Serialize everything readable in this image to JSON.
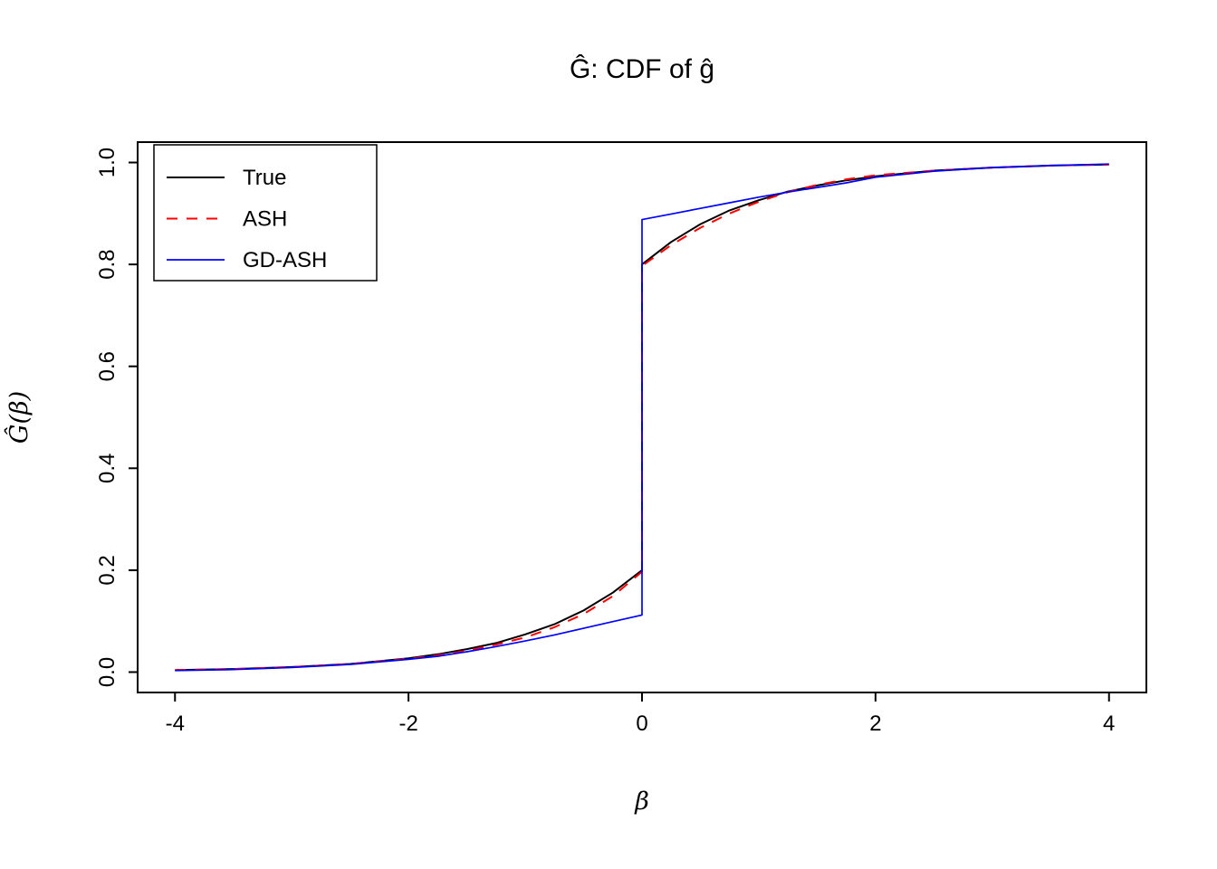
{
  "title": "Ĝ: CDF of ĝ",
  "chart_data": {
    "type": "line",
    "title": "Ĝ: CDF of ĝ",
    "xlabel": "β",
    "ylabel": "Ĝ(β)",
    "xlim": [
      -4,
      4
    ],
    "ylim": [
      0,
      1
    ],
    "x_ticks": [
      "-4",
      "-2",
      "0",
      "2",
      "4"
    ],
    "y_ticks": [
      "0.0",
      "0.2",
      "0.4",
      "0.6",
      "0.8",
      "1.0"
    ],
    "grid": false,
    "legend_position": "top-left",
    "series": [
      {
        "name": "True",
        "color": "#000000",
        "dash": "solid",
        "width": 2,
        "x": [
          -4,
          -3.5,
          -3,
          -2.5,
          -2,
          -1.75,
          -1.5,
          -1.25,
          -1,
          -0.75,
          -0.5,
          -0.25,
          0,
          0,
          0.25,
          0.5,
          0.75,
          1,
          1.25,
          1.5,
          1.75,
          2,
          2.5,
          3,
          3.5,
          4
        ],
        "y": [
          0.004,
          0.006,
          0.01,
          0.016,
          0.027,
          0.035,
          0.045,
          0.057,
          0.074,
          0.094,
          0.121,
          0.156,
          0.2,
          0.8,
          0.844,
          0.879,
          0.906,
          0.926,
          0.943,
          0.955,
          0.965,
          0.973,
          0.984,
          0.99,
          0.994,
          0.996
        ]
      },
      {
        "name": "ASH",
        "color": "#ff0000",
        "dash": "dashed",
        "width": 2,
        "x": [
          -4,
          -3.5,
          -3,
          -2.5,
          -2,
          -1.75,
          -1.5,
          -1.25,
          -1,
          -0.75,
          -0.5,
          -0.25,
          0,
          0,
          0.25,
          0.5,
          0.75,
          1,
          1.25,
          1.5,
          1.75,
          2,
          2.5,
          3,
          3.5,
          4
        ],
        "y": [
          0.004,
          0.006,
          0.01,
          0.016,
          0.026,
          0.033,
          0.042,
          0.054,
          0.068,
          0.088,
          0.114,
          0.149,
          0.197,
          0.797,
          0.838,
          0.872,
          0.9,
          0.923,
          0.942,
          0.956,
          0.967,
          0.975,
          0.984,
          0.99,
          0.994,
          0.996
        ]
      },
      {
        "name": "GD-ASH",
        "color": "#0000ff",
        "dash": "solid",
        "width": 1.7,
        "x": [
          -4,
          -3.5,
          -3,
          -2.5,
          -2,
          -1.75,
          -1.5,
          -1.25,
          -1,
          -0.75,
          -0.5,
          -0.25,
          0,
          0,
          0.25,
          0.5,
          0.75,
          1,
          1.25,
          1.5,
          1.75,
          2,
          2.5,
          3,
          3.5,
          4
        ],
        "y": [
          0.003,
          0.005,
          0.009,
          0.015,
          0.025,
          0.031,
          0.04,
          0.05,
          0.061,
          0.073,
          0.086,
          0.099,
          0.112,
          0.888,
          0.899,
          0.91,
          0.921,
          0.932,
          0.942,
          0.951,
          0.96,
          0.971,
          0.983,
          0.99,
          0.994,
          0.997
        ]
      }
    ]
  }
}
